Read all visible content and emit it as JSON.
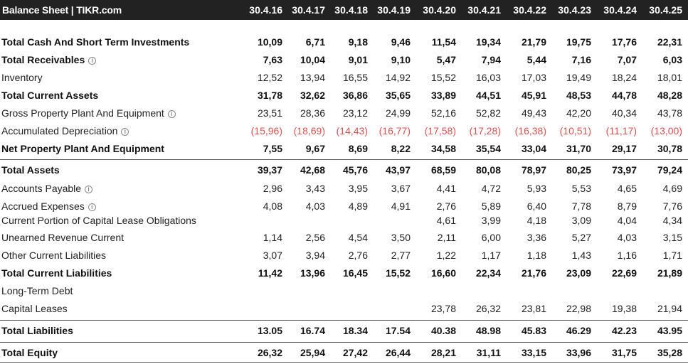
{
  "header": {
    "title": "Balance Sheet | TIKR.com",
    "years": [
      "30.4.16",
      "30.4.17",
      "30.4.18",
      "30.4.19",
      "30.4.20",
      "30.4.21",
      "30.4.22",
      "30.4.23",
      "30.4.24",
      "30.4.25"
    ]
  },
  "rows": [
    {
      "label": "Total Cash And Short Term Investments",
      "values": [
        "10,09",
        "6,71",
        "9,18",
        "9,46",
        "11,54",
        "19,34",
        "21,79",
        "19,75",
        "17,76",
        "22,31"
      ]
    },
    {
      "label": "Total Receivables",
      "values": [
        "7,63",
        "10,04",
        "9,01",
        "9,10",
        "5,47",
        "7,94",
        "5,44",
        "7,16",
        "7,07",
        "6,03"
      ]
    },
    {
      "label": "Inventory",
      "values": [
        "12,52",
        "13,94",
        "16,55",
        "14,92",
        "15,52",
        "16,03",
        "17,03",
        "19,49",
        "18,24",
        "18,01"
      ]
    },
    {
      "label": "Total Current Assets",
      "values": [
        "31,78",
        "32,62",
        "36,86",
        "35,65",
        "33,89",
        "44,51",
        "45,91",
        "48,53",
        "44,78",
        "48,28"
      ]
    },
    {
      "label": "Gross Property Plant And Equipment",
      "values": [
        "23,51",
        "28,36",
        "23,12",
        "24,99",
        "52,16",
        "52,82",
        "49,43",
        "42,20",
        "40,34",
        "43,78"
      ]
    },
    {
      "label": "Accumulated Depreciation",
      "values": [
        "(15,96)",
        "(18,69)",
        "(14,43)",
        "(16,77)",
        "(17,58)",
        "(17,28)",
        "(16,38)",
        "(10,51)",
        "(11,17)",
        "(13,00)"
      ]
    },
    {
      "label": "Net Property Plant And Equipment",
      "values": [
        "7,55",
        "9,67",
        "8,69",
        "8,22",
        "34,58",
        "35,54",
        "33,04",
        "31,70",
        "29,17",
        "30,78"
      ]
    },
    {
      "label": "Total Assets",
      "values": [
        "39,37",
        "42,68",
        "45,76",
        "43,97",
        "68,59",
        "80,08",
        "78,97",
        "80,25",
        "73,97",
        "79,24"
      ]
    },
    {
      "label": "Accounts Payable",
      "values": [
        "2,96",
        "3,43",
        "3,95",
        "3,67",
        "4,41",
        "4,72",
        "5,93",
        "5,53",
        "4,65",
        "4,69"
      ]
    },
    {
      "label": "Accrued Expenses",
      "values": [
        "4,08",
        "4,03",
        "4,89",
        "4,91",
        "2,76",
        "5,89",
        "6,40",
        "7,78",
        "8,79",
        "7,76"
      ]
    },
    {
      "label": "Current Portion of Capital Lease Obligations",
      "values": [
        "",
        "",
        "",
        "",
        "4,61",
        "3,99",
        "4,18",
        "3,09",
        "4,04",
        "4,34"
      ]
    },
    {
      "label": "Unearned Revenue Current",
      "values": [
        "1,14",
        "2,56",
        "4,54",
        "3,50",
        "2,11",
        "6,00",
        "3,36",
        "5,27",
        "4,03",
        "3,15"
      ]
    },
    {
      "label": "Other Current Liabilities",
      "values": [
        "3,07",
        "3,94",
        "2,76",
        "2,77",
        "1,22",
        "1,17",
        "1,18",
        "1,43",
        "1,16",
        "1,71"
      ]
    },
    {
      "label": "Total Current Liabilities",
      "values": [
        "11,42",
        "13,96",
        "16,45",
        "15,52",
        "16,60",
        "22,34",
        "21,76",
        "23,09",
        "22,69",
        "21,89"
      ]
    },
    {
      "label": "Long-Term Debt",
      "values": [
        "",
        "",
        "",
        "",
        "",
        "",
        "",
        "",
        "",
        ""
      ]
    },
    {
      "label": "Capital Leases",
      "values": [
        "",
        "",
        "",
        "",
        "23,78",
        "26,32",
        "23,81",
        "22,98",
        "19,38",
        "21,94"
      ]
    },
    {
      "label": "Total Liabilities",
      "values": [
        "13.05",
        "16.74",
        "18.34",
        "17.54",
        "40.38",
        "48.98",
        "45.83",
        "46.29",
        "42.23",
        "43.95"
      ]
    },
    {
      "label": "Total Equity",
      "values": [
        "26,32",
        "25,94",
        "27,42",
        "26,44",
        "28,21",
        "31,11",
        "33,15",
        "33,96",
        "31,75",
        "35,28"
      ]
    }
  ]
}
